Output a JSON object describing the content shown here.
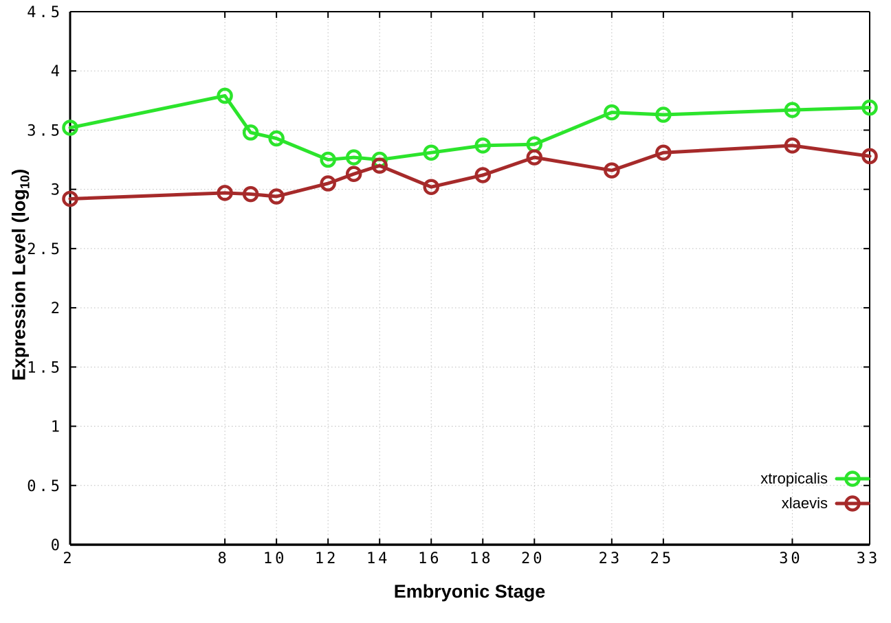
{
  "chart": {
    "xlabel": "Embryonic Stage",
    "ylabel_main": "Expression Level (log",
    "ylabel_sub": "10",
    "ylabel_close": ")"
  },
  "chart_data": {
    "type": "line",
    "title": "",
    "xlabel": "Embryonic Stage",
    "ylabel": "Expression Level (log10)",
    "x": [
      2,
      8,
      9,
      10,
      12,
      13,
      14,
      16,
      18,
      20,
      23,
      25,
      30,
      33
    ],
    "series": [
      {
        "name": "xtropicalis",
        "color": "#2ce42c",
        "values": [
          3.52,
          3.79,
          3.48,
          3.43,
          3.25,
          3.27,
          3.25,
          3.31,
          3.37,
          3.38,
          3.65,
          3.63,
          3.67,
          3.69
        ]
      },
      {
        "name": "xlaevis",
        "color": "#a62a2a",
        "values": [
          2.92,
          2.97,
          2.96,
          2.94,
          3.05,
          3.13,
          3.2,
          3.02,
          3.12,
          3.27,
          3.16,
          3.31,
          3.37,
          3.28
        ]
      }
    ],
    "xlim": [
      2,
      33
    ],
    "ylim": [
      0,
      4.5
    ],
    "x_ticks": [
      2,
      8,
      10,
      12,
      14,
      16,
      18,
      20,
      23,
      25,
      30,
      33
    ],
    "y_ticks": [
      0,
      0.5,
      1,
      1.5,
      2,
      2.5,
      3,
      3.5,
      4,
      4.5
    ],
    "grid": true,
    "grid_color": "#bdbdbd",
    "axis_color": "#000000",
    "tick_label_color": "#000000",
    "legend_position": "inside-bottom-right",
    "marker": "open-circle"
  }
}
